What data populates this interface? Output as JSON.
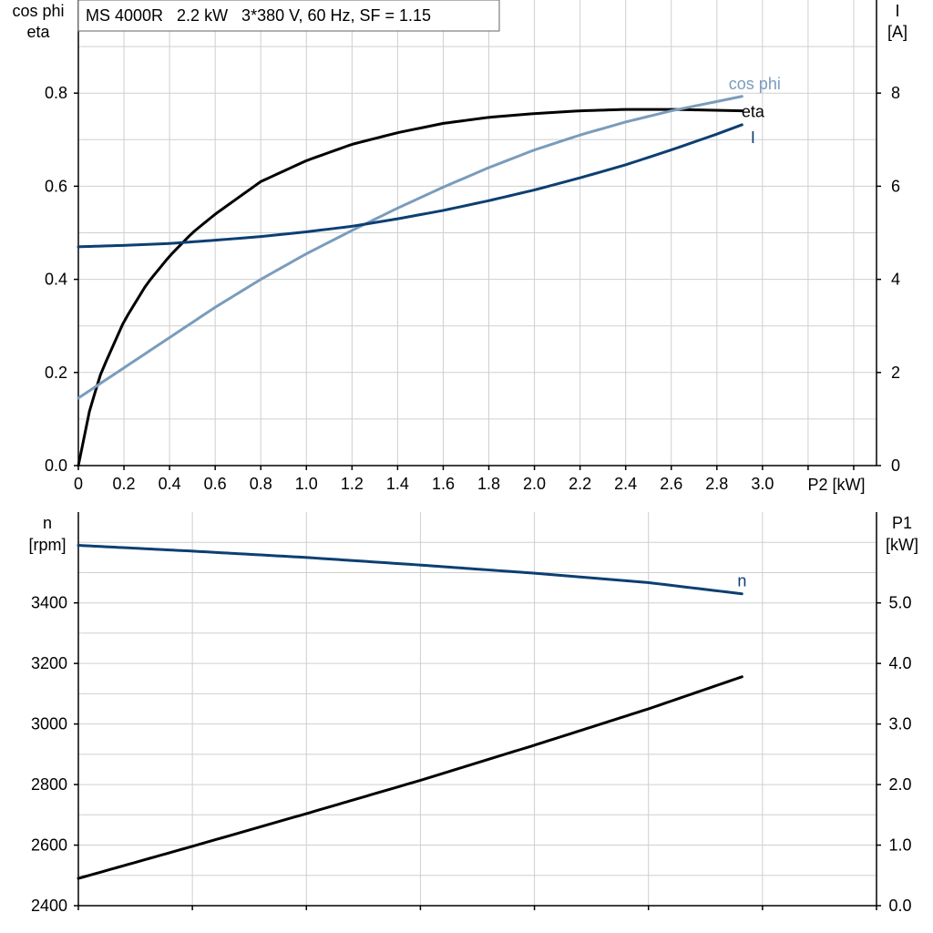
{
  "legend": {
    "text": "MS 4000R   2.2 kW   3*380 V, 60 Hz, SF = 1.15"
  },
  "chart_data": [
    {
      "type": "line",
      "title": "",
      "x_axis": {
        "label": "P2 [kW]",
        "min": 0,
        "max": 3.5,
        "ticks": [
          "0",
          "0.2",
          "0.4",
          "0.6",
          "0.8",
          "1.0",
          "1.2",
          "1.4",
          "1.6",
          "1.8",
          "2.0",
          "2.2",
          "2.4",
          "2.6",
          "2.8",
          "3.0"
        ]
      },
      "y_left": {
        "label_lines": [
          "cos phi",
          "eta"
        ],
        "min": 0,
        "max": 1.0,
        "ticks": [
          "0.0",
          "0.2",
          "0.4",
          "0.6",
          "0.8"
        ]
      },
      "y_right": {
        "label_lines": [
          "I",
          "[A]"
        ],
        "min": 0,
        "max": 10,
        "ticks": [
          "0",
          "2",
          "4",
          "6",
          "8"
        ]
      },
      "grid": true,
      "series": [
        {
          "name": "eta",
          "axis": "left",
          "color": "#000000",
          "x": [
            0,
            0.05,
            0.1,
            0.2,
            0.3,
            0.4,
            0.5,
            0.6,
            0.8,
            1.0,
            1.2,
            1.4,
            1.6,
            1.8,
            2.0,
            2.2,
            2.4,
            2.6,
            2.8,
            2.91
          ],
          "y": [
            0.0,
            0.12,
            0.2,
            0.31,
            0.39,
            0.45,
            0.5,
            0.54,
            0.61,
            0.655,
            0.69,
            0.715,
            0.735,
            0.748,
            0.756,
            0.762,
            0.765,
            0.765,
            0.763,
            0.762
          ]
        },
        {
          "name": "cos phi",
          "axis": "left",
          "color": "#7a9cbc",
          "x": [
            0,
            0.2,
            0.4,
            0.6,
            0.8,
            1.0,
            1.2,
            1.4,
            1.6,
            1.8,
            2.0,
            2.2,
            2.4,
            2.6,
            2.8,
            2.91
          ],
          "y": [
            0.145,
            0.21,
            0.275,
            0.34,
            0.4,
            0.455,
            0.505,
            0.553,
            0.598,
            0.64,
            0.678,
            0.71,
            0.738,
            0.762,
            0.782,
            0.793
          ]
        },
        {
          "name": "I",
          "axis": "right",
          "color": "#0c3f72",
          "x": [
            0,
            0.2,
            0.4,
            0.6,
            0.8,
            1.0,
            1.2,
            1.4,
            1.6,
            1.8,
            2.0,
            2.2,
            2.4,
            2.6,
            2.8,
            2.91
          ],
          "y": [
            4.7,
            4.73,
            4.77,
            4.84,
            4.92,
            5.02,
            5.14,
            5.3,
            5.48,
            5.69,
            5.92,
            6.18,
            6.46,
            6.78,
            7.12,
            7.32
          ]
        }
      ]
    },
    {
      "type": "line",
      "title": "",
      "x_axis": {
        "min": 0,
        "max": 3.5
      },
      "y_left": {
        "label_lines": [
          "n",
          "[rpm]"
        ],
        "min": 2400,
        "max": 3700,
        "ticks": [
          "2400",
          "2600",
          "2800",
          "3000",
          "3200",
          "3400"
        ]
      },
      "y_right": {
        "label_lines": [
          "P1",
          "[kW]"
        ],
        "min": 0,
        "max": 6.5,
        "ticks": [
          "0.0",
          "1.0",
          "2.0",
          "3.0",
          "4.0",
          "5.0"
        ]
      },
      "grid": true,
      "series": [
        {
          "name": "n",
          "axis": "left",
          "color": "#0c3f72",
          "x": [
            0,
            0.5,
            1.0,
            1.5,
            2.0,
            2.5,
            2.91
          ],
          "y": [
            3590,
            3571,
            3550,
            3525,
            3498,
            3467,
            3430
          ]
        },
        {
          "name": "P1",
          "axis": "right",
          "color": "#000000",
          "x": [
            0,
            0.5,
            1.0,
            1.5,
            2.0,
            2.5,
            2.91
          ],
          "y": [
            0.45,
            0.98,
            1.52,
            2.07,
            2.65,
            3.25,
            3.78
          ]
        }
      ]
    }
  ]
}
